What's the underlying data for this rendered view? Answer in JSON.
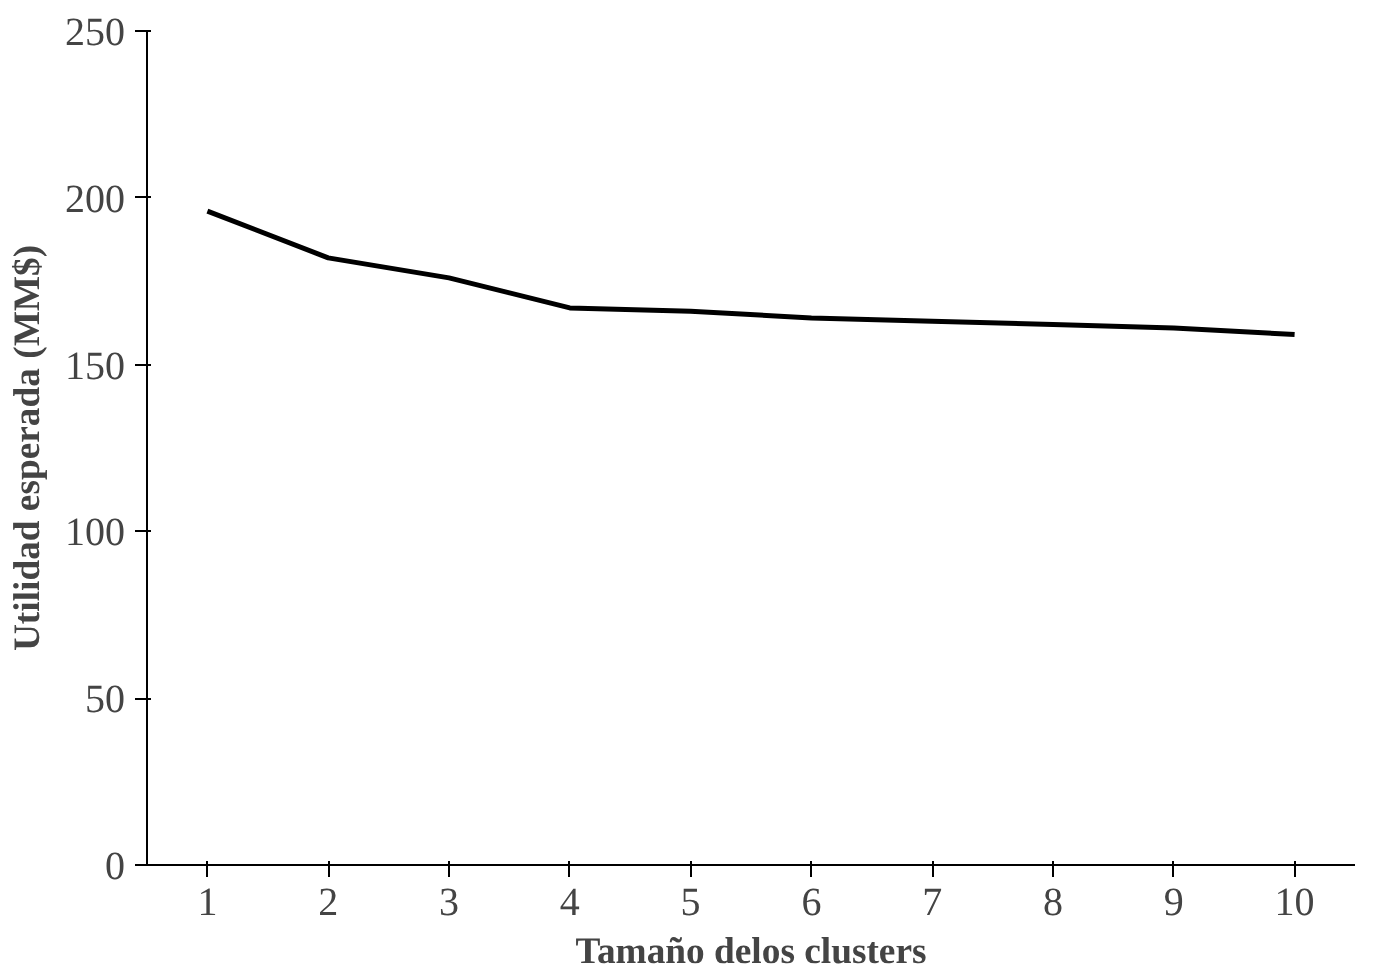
{
  "chart_data": {
    "type": "line",
    "xlabel": "Tamaño delos clusters",
    "ylabel": "Utilidad esperada (MM$)",
    "x": [
      1,
      2,
      3,
      4,
      5,
      6,
      7,
      8,
      9,
      10
    ],
    "series": [
      {
        "color": "#000000",
        "values": [
          196,
          182,
          176,
          167,
          166,
          164,
          163,
          162,
          161,
          159
        ]
      }
    ],
    "xlim": [
      0.5,
      10.5
    ],
    "xticks": [
      1,
      2,
      3,
      4,
      5,
      6,
      7,
      8,
      9,
      10
    ],
    "ylim": [
      0,
      250
    ],
    "yticks": [
      0,
      50,
      100,
      150,
      200,
      250
    ],
    "marker": "none",
    "line_style": "solid"
  }
}
